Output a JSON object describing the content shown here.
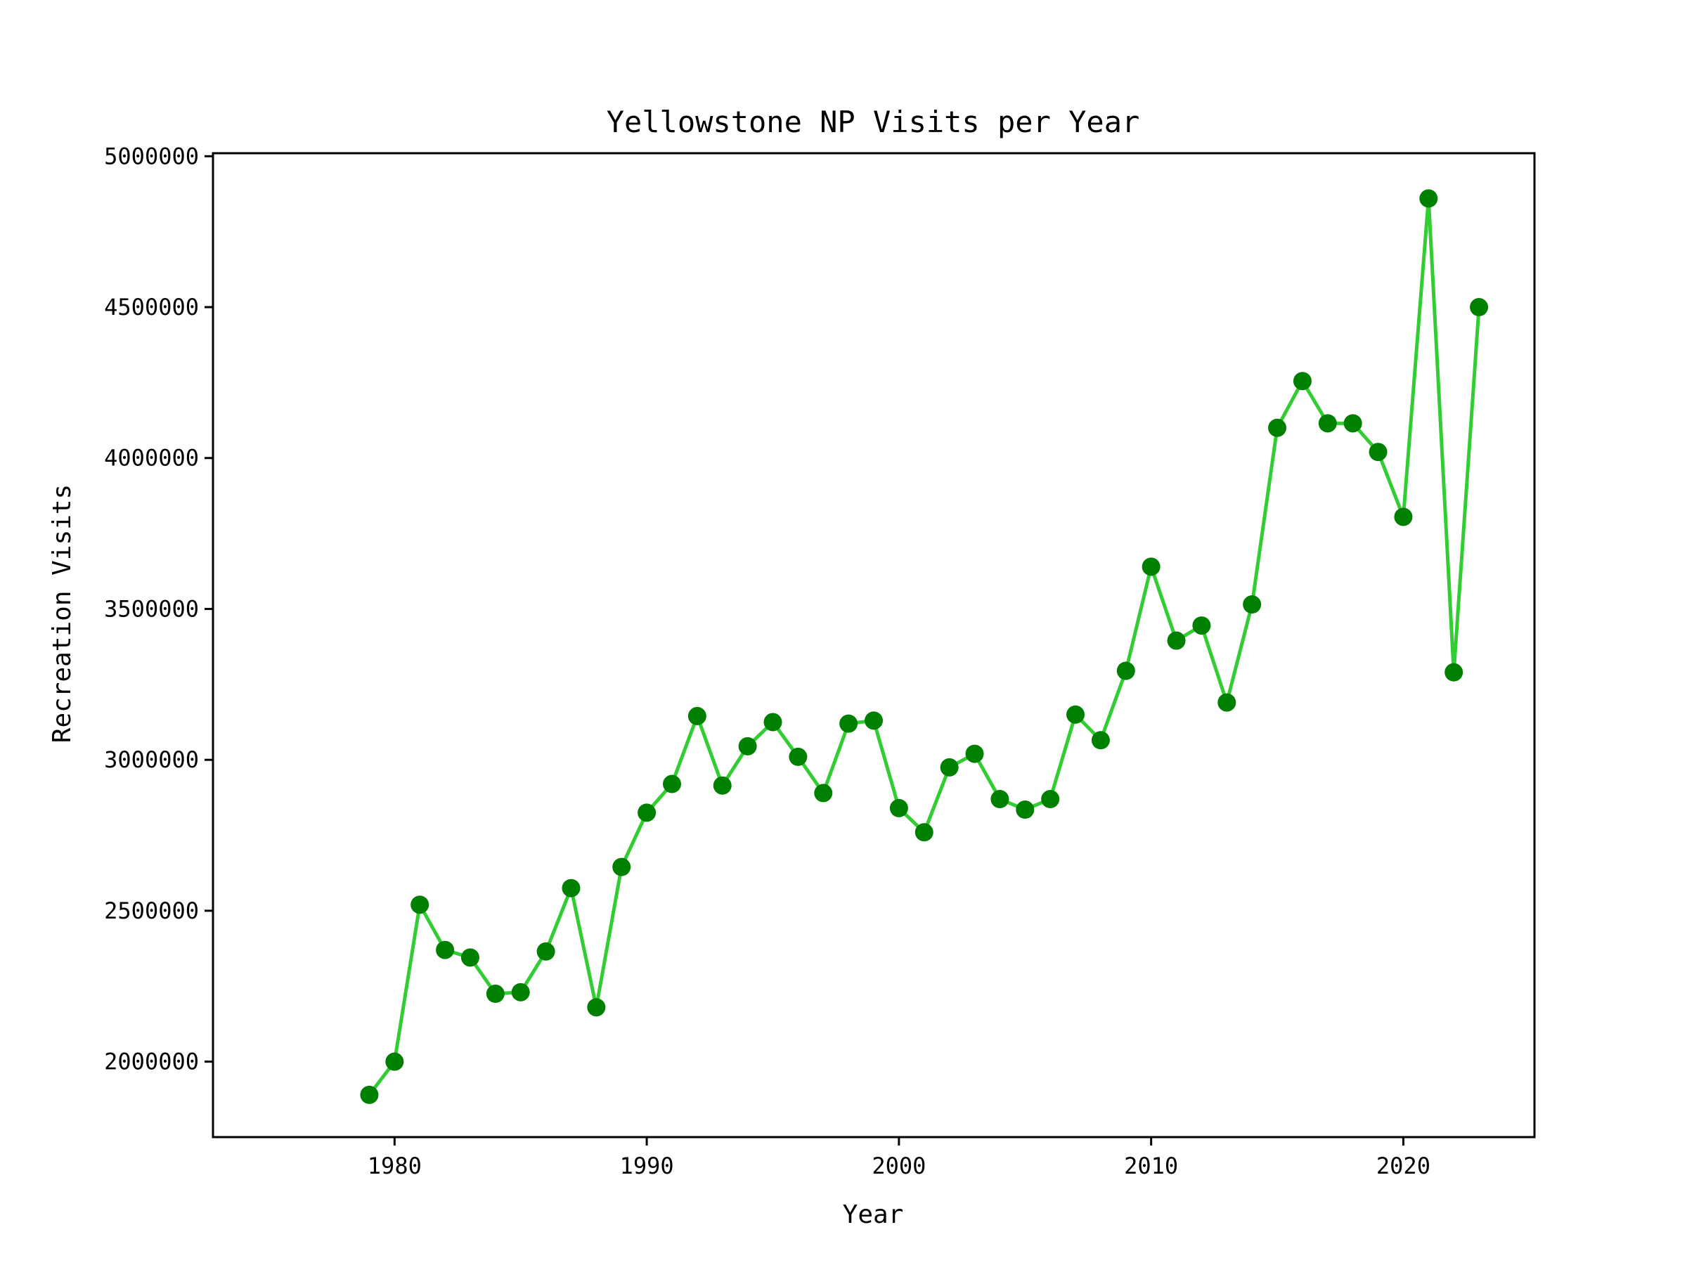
{
  "chart_data": {
    "type": "line",
    "title": "Yellowstone NP Visits per Year",
    "xlabel": "Year",
    "ylabel": "Recreation Visits",
    "xlim": [
      1972.8,
      2025.2
    ],
    "ylim": [
      1750000,
      5010000
    ],
    "xticks": [
      1980,
      1990,
      2000,
      2010,
      2020
    ],
    "yticks": [
      2000000,
      2500000,
      3000000,
      3500000,
      4000000,
      4500000,
      5000000
    ],
    "grid": false,
    "legend": "none",
    "series": [
      {
        "line_color": "#32cd32",
        "marker_color": "#008000",
        "x": [
          1979,
          1980,
          1981,
          1982,
          1983,
          1984,
          1985,
          1986,
          1987,
          1988,
          1989,
          1990,
          1991,
          1992,
          1993,
          1994,
          1995,
          1996,
          1997,
          1998,
          1999,
          2000,
          2001,
          2002,
          2003,
          2004,
          2005,
          2006,
          2007,
          2008,
          2009,
          2010,
          2011,
          2012,
          2013,
          2014,
          2015,
          2016,
          2017,
          2018,
          2019,
          2020,
          2021,
          2022,
          2023
        ],
        "values": [
          1890000,
          2000000,
          2520000,
          2370000,
          2345000,
          2225000,
          2230000,
          2365000,
          2575000,
          2180000,
          2645000,
          2825000,
          2920000,
          3145000,
          2915000,
          3045000,
          3125000,
          3010000,
          2890000,
          3120000,
          3130000,
          2840000,
          2760000,
          2975000,
          3020000,
          2870000,
          2835000,
          2870000,
          3150000,
          3065000,
          3295000,
          3640000,
          3395000,
          3445000,
          3190000,
          3515000,
          4100000,
          4255000,
          4115000,
          4115000,
          4020000,
          3805000,
          4860000,
          3290000,
          4500000
        ]
      }
    ]
  }
}
